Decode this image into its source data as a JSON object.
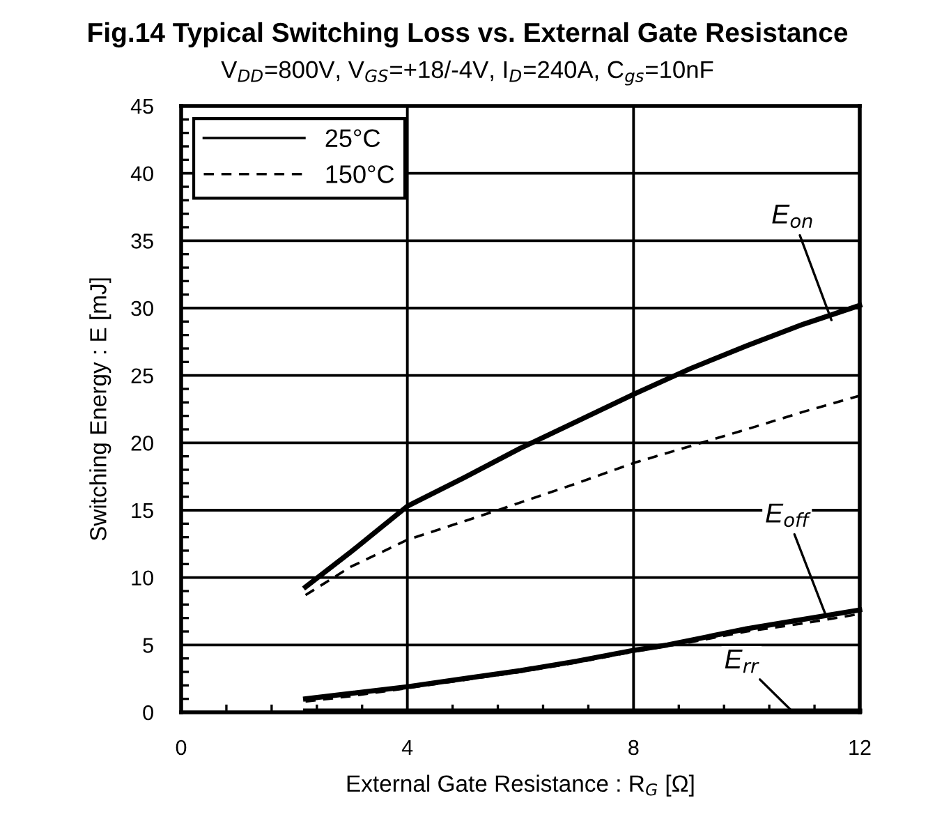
{
  "chart_data": {
    "type": "line",
    "title": "Fig.14 Typical Switching Loss vs. External Gate Resistance",
    "subtitle": "V$_{DD}$=800V, V$_{GS}$=+18/-4V, I$_{D}$=240A, C$_{gs}$=10nF",
    "xlabel": "External Gate Resistance : R$_{G}$ [Ω]",
    "ylabel": "Switching Energy : E [mJ]",
    "xlim": [
      0,
      12
    ],
    "xticks": [
      0,
      4,
      8,
      12
    ],
    "ylim": [
      0,
      45
    ],
    "yticks": [
      0,
      5,
      10,
      15,
      20,
      25,
      30,
      35,
      40,
      45
    ],
    "grid": true,
    "legend": "top left",
    "marker": "none",
    "series": [
      {
        "name": "25°C",
        "color": "#000000",
        "line_style": "solid",
        "x": [
          2.2,
          3,
          4,
          5,
          6,
          7,
          8,
          9,
          10,
          11,
          12
        ],
        "values": [
          9.3,
          11.9,
          15.3,
          17.4,
          19.6,
          21.6,
          23.6,
          25.5,
          27.2,
          28.8,
          30.2
        ]
      },
      {
        "name": "150°C",
        "color": "#000000",
        "line_style": "dashed",
        "x": [
          2.2,
          3,
          4,
          5.6,
          7,
          8,
          9.2,
          10,
          11,
          12
        ],
        "values": [
          8.7,
          10.8,
          12.8,
          15,
          17,
          18.5,
          20,
          21,
          22.3,
          23.5
        ]
      },
      {
        "color": "#000000",
        "line_style": "solid",
        "x": [
          2.2,
          3,
          4,
          5,
          6,
          7,
          8,
          8.6,
          10,
          11,
          12
        ],
        "values": [
          1.0,
          1.4,
          1.9,
          2.5,
          3.1,
          3.8,
          4.6,
          5,
          6.2,
          6.9,
          7.6
        ]
      },
      {
        "color": "#000000",
        "line_style": "dashed",
        "x": [
          2.2,
          3,
          4,
          5,
          6,
          7,
          8,
          9,
          10,
          11,
          12
        ],
        "values": [
          0.8,
          1.2,
          1.8,
          2.4,
          3.0,
          3.7,
          4.5,
          5.2,
          6.0,
          6.6,
          7.3
        ]
      },
      {
        "color": "#000000",
        "line_style": "solid",
        "x": [
          2.2,
          12
        ],
        "values": [
          0.1,
          0.1
        ]
      }
    ],
    "annotations": [
      {
        "text": "E$_{on}$",
        "x": 11.5,
        "y": 29.1
      },
      {
        "text": "E$_{off}$",
        "x": 11.4,
        "y": 7.2
      },
      {
        "text": "E$_{rr}$",
        "x": 10.8,
        "y": 0.1
      }
    ]
  }
}
